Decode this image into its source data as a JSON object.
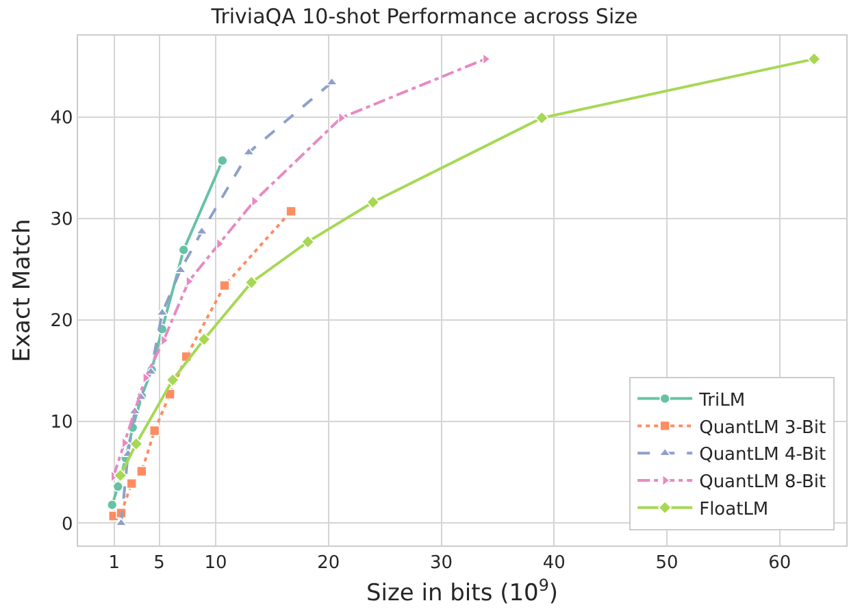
{
  "chart_data": {
    "type": "line",
    "title": "TriviaQA 10-shot Performance across Size",
    "xlabel": "Size in bits (10$^{9}$)",
    "ylabel": "Exact Match",
    "xlim": [
      -2.2,
      65.9
    ],
    "xticks": [
      1,
      5,
      10,
      20,
      30,
      40,
      50,
      60
    ],
    "ylim": [
      -2.2,
      48
    ],
    "yticks": [
      0,
      10,
      20,
      30,
      40
    ],
    "grid": true,
    "legend": "bottom right",
    "series": [
      {
        "name": "TriLM",
        "color": "#66c2a5",
        "marker": "circle",
        "line_style": "solid",
        "x": [
          0.82,
          1.34,
          2.03,
          2.64,
          3.44,
          4.33,
          5.25,
          7.16,
          10.6
        ],
        "values": [
          1.8,
          3.6,
          6.4,
          9.4,
          12.5,
          15.1,
          19.1,
          26.9,
          35.7
        ]
      },
      {
        "name": "QuantLM 3-Bit",
        "color": "#fc8d62",
        "marker": "square",
        "line_style": "dotted",
        "x": [
          0.94,
          1.62,
          2.55,
          3.44,
          4.58,
          5.94,
          7.4,
          10.79,
          16.68
        ],
        "values": [
          0.7,
          1.0,
          3.9,
          5.1,
          9.1,
          12.7,
          16.4,
          23.4,
          30.7
        ]
      },
      {
        "name": "QuantLM 4-Bit",
        "color": "#8da0cb",
        "marker": "triangle",
        "line_style": "dashed",
        "x": [
          1.62,
          2.23,
          2.83,
          3.36,
          4.25,
          5.26,
          6.87,
          8.77,
          12.93,
          20.29
        ],
        "values": [
          0,
          6.8,
          11.0,
          12.4,
          14.9,
          20.7,
          24.9,
          28.7,
          36.5,
          43.4
        ]
      },
      {
        "name": "QuantLM 8-Bit",
        "color": "#e78ac3",
        "marker": "triangle-right",
        "line_style": "dashdot",
        "x": [
          0.94,
          1.91,
          3.77,
          5.38,
          7.6,
          10.3,
          13.41,
          21.11,
          33.91
        ],
        "values": [
          4.6,
          7.9,
          14.3,
          18.0,
          23.8,
          27.5,
          31.7,
          39.9,
          45.7
        ]
      },
      {
        "name": "FloatLM",
        "color": "#a6d854",
        "marker": "diamond",
        "line_style": "solid",
        "x": [
          1.55,
          2.95,
          6.19,
          8.97,
          13.17,
          18.17,
          23.95,
          38.91,
          63.05
        ],
        "values": [
          4.7,
          7.8,
          14.1,
          18.1,
          23.7,
          27.7,
          31.6,
          39.9,
          45.7
        ]
      }
    ]
  }
}
